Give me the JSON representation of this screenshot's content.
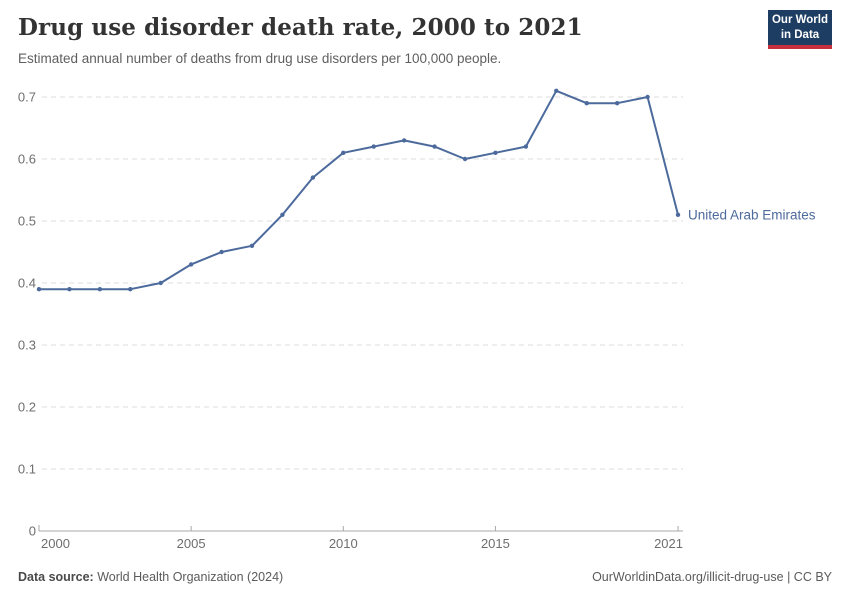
{
  "header": {
    "title": "Drug use disorder death rate, 2000 to 2021",
    "subtitle": "Estimated annual number of deaths from drug use disorders per 100,000 people.",
    "logo": {
      "line1": "Our World",
      "line2": "in Data"
    }
  },
  "chart_data": {
    "type": "line",
    "title": "Drug use disorder death rate, 2000 to 2021",
    "xlabel": "",
    "ylabel": "",
    "ylim": [
      0,
      0.7
    ],
    "yticks": [
      0,
      0.1,
      0.2,
      0.3,
      0.4,
      0.5,
      0.6,
      0.7
    ],
    "xticks": [
      2000,
      2005,
      2010,
      2015,
      2021
    ],
    "grid": true,
    "legend_position": "end-of-line-label",
    "line_color": "#4c6a9c",
    "grid_color": "#dcdcdc",
    "axis_color": "#a8a8a8",
    "tick_label_color": "#6e6e6e",
    "series": [
      {
        "name": "United Arab Emirates",
        "x": [
          2000,
          2001,
          2002,
          2003,
          2004,
          2005,
          2006,
          2007,
          2008,
          2009,
          2010,
          2011,
          2012,
          2013,
          2014,
          2015,
          2016,
          2017,
          2018,
          2019,
          2020,
          2021
        ],
        "values": [
          0.39,
          0.39,
          0.39,
          0.39,
          0.4,
          0.43,
          0.45,
          0.46,
          0.51,
          0.57,
          0.61,
          0.62,
          0.63,
          0.62,
          0.6,
          0.61,
          0.62,
          0.71,
          0.69,
          0.69,
          0.7,
          0.51
        ]
      }
    ]
  },
  "footer": {
    "source_label": "Data source:",
    "source_value": "World Health Organization (2024)",
    "url": "OurWorldinData.org/illicit-drug-use",
    "separator": " | ",
    "license": "CC BY"
  }
}
